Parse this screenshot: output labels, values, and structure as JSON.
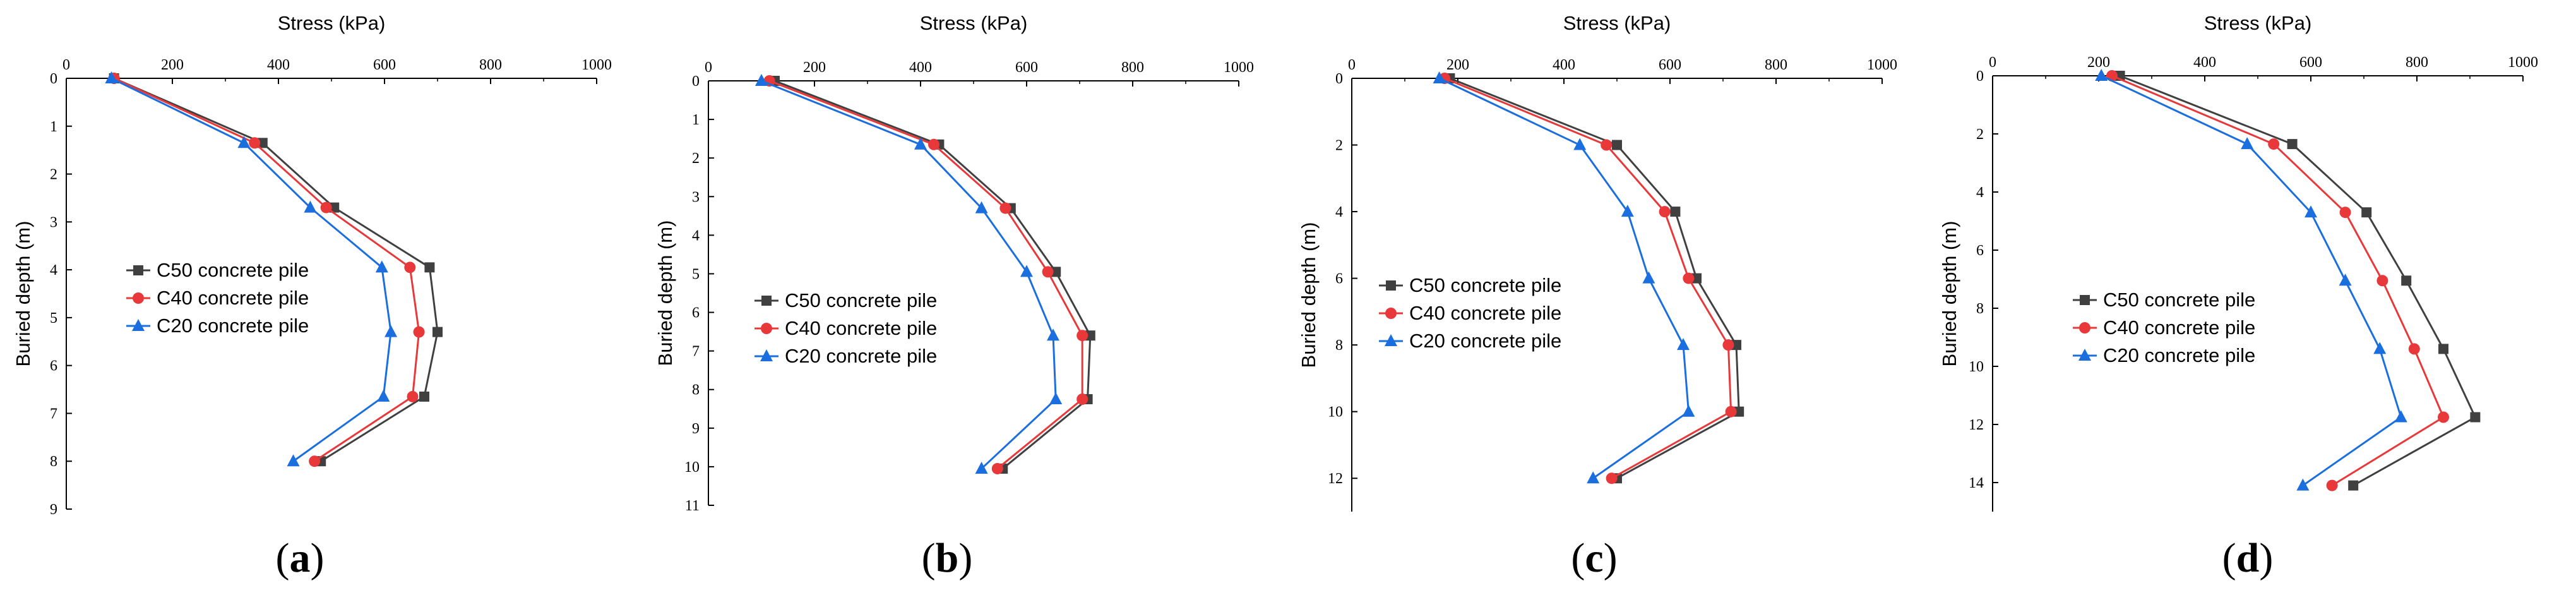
{
  "figure": {
    "series_styles": [
      {
        "name": "C50 concrete pile",
        "color": "#404040",
        "marker": "square"
      },
      {
        "name": "C40 concrete pile",
        "color": "#e8383a",
        "marker": "circle"
      },
      {
        "name": "C20 concrete pile",
        "color": "#1a6ede",
        "marker": "triangle"
      }
    ]
  },
  "chart_data": [
    {
      "type": "line",
      "panel_label": "(a)",
      "panel_letter": "a",
      "xlabel": "Stress (kPa)",
      "ylabel": "Buried depth (m)",
      "xlim": [
        0,
        1000
      ],
      "ylim": [
        0,
        9
      ],
      "xticks": [
        0,
        200,
        400,
        600,
        800,
        1000
      ],
      "yticks": [
        0,
        1,
        2,
        3,
        4,
        5,
        6,
        7,
        8,
        9
      ],
      "x_axis_position": "top",
      "y_inverted": true,
      "legend_position": "left",
      "series": [
        {
          "name": "C50 concrete pile",
          "points": [
            [
              90,
              0
            ],
            [
              370,
              1.35
            ],
            [
              505,
              2.7
            ],
            [
              685,
              3.95
            ],
            [
              700,
              5.3
            ],
            [
              675,
              6.65
            ],
            [
              480,
              8
            ]
          ]
        },
        {
          "name": "C40 concrete pile",
          "points": [
            [
              90,
              0
            ],
            [
              355,
              1.35
            ],
            [
              490,
              2.7
            ],
            [
              648,
              3.95
            ],
            [
              665,
              5.3
            ],
            [
              653,
              6.65
            ],
            [
              468,
              8
            ]
          ]
        },
        {
          "name": "C20 concrete pile",
          "points": [
            [
              85,
              0
            ],
            [
              335,
              1.35
            ],
            [
              460,
              2.7
            ],
            [
              595,
              3.95
            ],
            [
              612,
              5.3
            ],
            [
              598,
              6.65
            ],
            [
              428,
              8
            ]
          ]
        }
      ]
    },
    {
      "type": "line",
      "panel_label": "(b)",
      "panel_letter": "b",
      "xlabel": "Stress (kPa)",
      "ylabel": "Buried depth (m)",
      "xlim": [
        0,
        1000
      ],
      "ylim": [
        0,
        11
      ],
      "xticks": [
        0,
        200,
        400,
        600,
        800,
        1000
      ],
      "yticks": [
        0,
        1,
        2,
        3,
        4,
        5,
        6,
        7,
        8,
        9,
        10,
        11
      ],
      "x_axis_position": "top",
      "y_inverted": true,
      "legend_position": "center",
      "series": [
        {
          "name": "C50 concrete pile",
          "points": [
            [
              125,
              0
            ],
            [
              435,
              1.65
            ],
            [
              570,
              3.3
            ],
            [
              655,
              4.95
            ],
            [
              720,
              6.6
            ],
            [
              715,
              8.25
            ],
            [
              555,
              10.05
            ]
          ]
        },
        {
          "name": "C40 concrete pile",
          "points": [
            [
              115,
              0
            ],
            [
              425,
              1.65
            ],
            [
              560,
              3.3
            ],
            [
              640,
              4.95
            ],
            [
              705,
              6.6
            ],
            [
              705,
              8.25
            ],
            [
              545,
              10.05
            ]
          ]
        },
        {
          "name": "C20 concrete pile",
          "points": [
            [
              100,
              0
            ],
            [
              400,
              1.65
            ],
            [
              515,
              3.3
            ],
            [
              600,
              4.95
            ],
            [
              650,
              6.6
            ],
            [
              655,
              8.25
            ],
            [
              515,
              10.05
            ]
          ]
        }
      ]
    },
    {
      "type": "line",
      "panel_label": "(c)",
      "panel_letter": "c",
      "xlabel": "Stress (kPa)",
      "ylabel": "Buried depth (m)",
      "xlim": [
        0,
        1000
      ],
      "ylim": [
        0,
        13
      ],
      "xticks": [
        0,
        200,
        400,
        600,
        800,
        1000
      ],
      "yticks": [
        0,
        2,
        4,
        6,
        8,
        10,
        12
      ],
      "x_axis_position": "top",
      "y_inverted": true,
      "legend_position": "center",
      "series": [
        {
          "name": "C50 concrete pile",
          "points": [
            [
              185,
              0
            ],
            [
              500,
              2
            ],
            [
              610,
              4
            ],
            [
              650,
              6
            ],
            [
              725,
              8
            ],
            [
              730,
              10
            ],
            [
              500,
              12
            ]
          ]
        },
        {
          "name": "C40 concrete pile",
          "points": [
            [
              175,
              0
            ],
            [
              480,
              2
            ],
            [
              590,
              4
            ],
            [
              635,
              6
            ],
            [
              710,
              8
            ],
            [
              715,
              10
            ],
            [
              490,
              12
            ]
          ]
        },
        {
          "name": "C20 concrete pile",
          "points": [
            [
              165,
              0
            ],
            [
              430,
              2
            ],
            [
              520,
              4
            ],
            [
              560,
              6
            ],
            [
              625,
              8
            ],
            [
              635,
              10
            ],
            [
              455,
              12
            ]
          ]
        }
      ]
    },
    {
      "type": "line",
      "panel_label": "(d)",
      "panel_letter": "d",
      "xlabel": "Stress (kPa)",
      "ylabel": "Buried depth (m)",
      "xlim": [
        0,
        1000
      ],
      "ylim": [
        0,
        15
      ],
      "xticks": [
        0,
        200,
        400,
        600,
        800,
        1000
      ],
      "yticks": [
        0,
        2,
        4,
        6,
        8,
        10,
        12,
        14
      ],
      "x_axis_position": "top",
      "y_inverted": true,
      "legend_position": "center",
      "series": [
        {
          "name": "C50 concrete pile",
          "points": [
            [
              240,
              0
            ],
            [
              565,
              2.35
            ],
            [
              705,
              4.7
            ],
            [
              780,
              7.05
            ],
            [
              850,
              9.4
            ],
            [
              910,
              11.75
            ],
            [
              680,
              14.1
            ]
          ]
        },
        {
          "name": "C40 concrete pile",
          "points": [
            [
              225,
              0
            ],
            [
              530,
              2.35
            ],
            [
              665,
              4.7
            ],
            [
              735,
              7.05
            ],
            [
              795,
              9.4
            ],
            [
              850,
              11.75
            ],
            [
              640,
              14.1
            ]
          ]
        },
        {
          "name": "C20 concrete pile",
          "points": [
            [
              205,
              0
            ],
            [
              480,
              2.35
            ],
            [
              600,
              4.7
            ],
            [
              665,
              7.05
            ],
            [
              730,
              9.4
            ],
            [
              770,
              11.75
            ],
            [
              585,
              14.1
            ]
          ]
        }
      ]
    }
  ]
}
